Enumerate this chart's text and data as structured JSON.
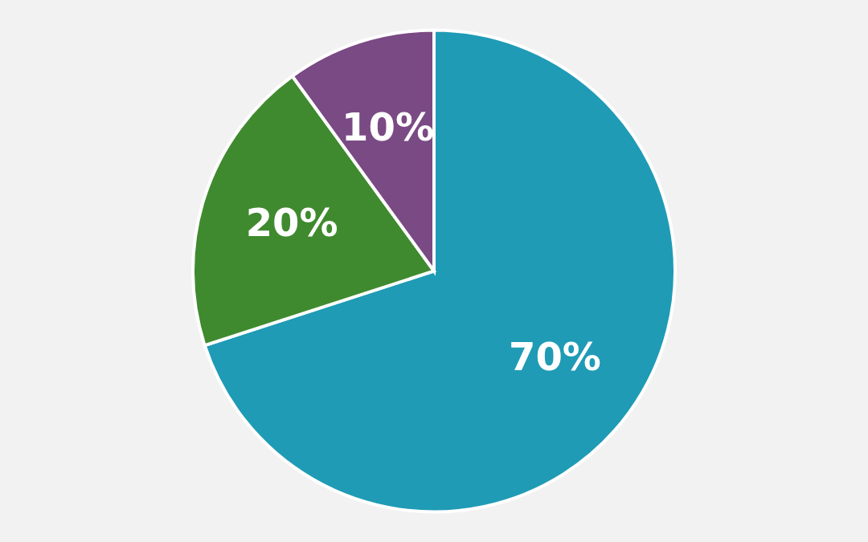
{
  "chart_data": {
    "type": "pie",
    "categories": [
      null,
      null,
      null
    ],
    "values": [
      70,
      20,
      10
    ],
    "colors": [
      "#1f9bb5",
      "#3f8a2e",
      "#7a4a84"
    ],
    "value_labels": [
      "70%",
      "20%",
      "10%"
    ]
  }
}
